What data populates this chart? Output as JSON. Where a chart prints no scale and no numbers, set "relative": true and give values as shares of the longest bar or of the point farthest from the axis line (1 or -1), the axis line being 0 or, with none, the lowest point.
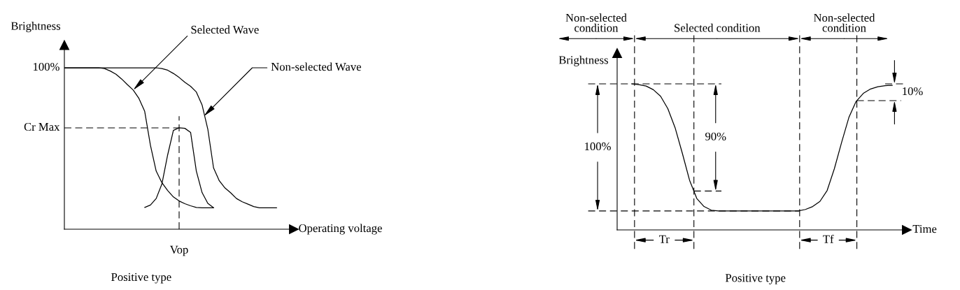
{
  "chart_data": [
    {
      "type": "line",
      "title": "Positive type",
      "xlabel": "Operating voltage",
      "ylabel": "Brightness",
      "relative": true,
      "categories": [
        null,
        null,
        null,
        null,
        null,
        null,
        null,
        null,
        null,
        null,
        null,
        null,
        null,
        null,
        null,
        null,
        null,
        null,
        null,
        null,
        null,
        null,
        null,
        null,
        null,
        null,
        null,
        null,
        null,
        null,
        null,
        null,
        null,
        null,
        null,
        null,
        null,
        null
      ],
      "series": [
        {
          "color": "#000000",
          "values": [
            1,
            1,
            1,
            1,
            1,
            1,
            1,
            0.995,
            0.98,
            0.96,
            0.93,
            0.895,
            0.862,
            0.81,
            0.73,
            0.52,
            0.36,
            0.288,
            0.24,
            0.2,
            0.175,
            0.158,
            0.145,
            0.135,
            0.133,
            0.133,
            0.133,
            null,
            null,
            null,
            null,
            null,
            null,
            null,
            null,
            null,
            null,
            null
          ]
        },
        {
          "color": "#000000",
          "values": [
            1,
            1,
            1,
            1,
            1,
            1,
            1,
            1,
            1,
            1,
            1,
            1,
            1,
            1,
            1,
            1,
            1,
            0.995,
            0.985,
            0.965,
            0.94,
            0.91,
            0.885,
            0.85,
            0.77,
            0.62,
            0.38,
            0.3,
            0.255,
            0.225,
            0.19,
            0.17,
            0.155,
            0.14,
            0.133,
            0.133,
            0.133,
            0.133
          ]
        },
        {
          "color": "#000000",
          "values": [
            null,
            null,
            null,
            null,
            null,
            null,
            null,
            null,
            null,
            null,
            null,
            null,
            null,
            null,
            0.135,
            0.15,
            0.19,
            0.28,
            0.46,
            0.612,
            0.628,
            0.625,
            0.6,
            0.36,
            0.227,
            0.16,
            0.133,
            null,
            null,
            null,
            null,
            null,
            null,
            null,
            null,
            null,
            null,
            null
          ]
        }
      ],
      "ref_lines": [
        {
          "axis": "y",
          "value": 0.628,
          "label": "Cr Max",
          "line_style": "dashed"
        }
      ],
      "annotations": [
        "100%",
        "Selected Wave",
        "Non-selected Wave",
        "Vop"
      ]
    },
    {
      "type": "line",
      "title": "Positive type",
      "xlabel": "Time",
      "ylabel": "Brightness",
      "relative": true,
      "categories": [
        null,
        null,
        null,
        null,
        null,
        null,
        null,
        null,
        null,
        null,
        null,
        null,
        null,
        null,
        null,
        null,
        null,
        null,
        null,
        null,
        null,
        null,
        null,
        null,
        null,
        null,
        null,
        null,
        null,
        null,
        null,
        null,
        null,
        null,
        null,
        null,
        null
      ],
      "series": [
        {
          "color": "#000000",
          "values": [
            1,
            0.995,
            0.985,
            0.96,
            0.915,
            0.83,
            0.7,
            0.525,
            0.34,
            0.215,
            0.16,
            0.135,
            0.13,
            0.13,
            0.13,
            0.13,
            0.13,
            0.13,
            0.13,
            0.13,
            0.13,
            0.13,
            0.13,
            0.13,
            0.14,
            0.16,
            0.195,
            0.27,
            0.42,
            0.6,
            0.77,
            0.88,
            0.935,
            0.965,
            0.98,
            0.988,
            0.99
          ]
        }
      ],
      "ref_lines": [
        {
          "axis": "y",
          "value": 1,
          "line_style": "dashed"
        },
        {
          "axis": "y",
          "value": 0.13,
          "line_style": "dashed"
        },
        {
          "axis": "y",
          "value": 0.266,
          "line_style": "dashed"
        },
        {
          "axis": "y",
          "value": 0.885,
          "line_style": "dashed"
        }
      ],
      "annotations": [
        "100%",
        "90%",
        "10%",
        "Tr",
        "Tf",
        "Non-selected\ncondition",
        "Selected condition",
        "Non-selected\ncondition"
      ]
    }
  ]
}
